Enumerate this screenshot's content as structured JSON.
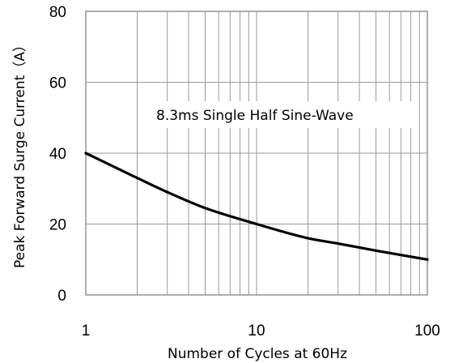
{
  "chart_data": {
    "type": "line",
    "xscale": "log",
    "xlim": [
      1,
      100
    ],
    "ylim": [
      0,
      80
    ],
    "xticks": [
      "1",
      "10",
      "100"
    ],
    "yticks": [
      "0",
      "20",
      "40",
      "60",
      "80"
    ],
    "xlabel": "Number of Cycles at 60Hz",
    "ylabel": "Peak Forward Surge Current（A）",
    "annotation": "8.3ms Single Half Sine-Wave",
    "grid": true,
    "x": [
      1,
      2,
      3,
      5,
      10,
      20,
      30,
      50,
      100
    ],
    "y": [
      40,
      33,
      29,
      24.5,
      20,
      16,
      14.5,
      12.5,
      10
    ]
  }
}
